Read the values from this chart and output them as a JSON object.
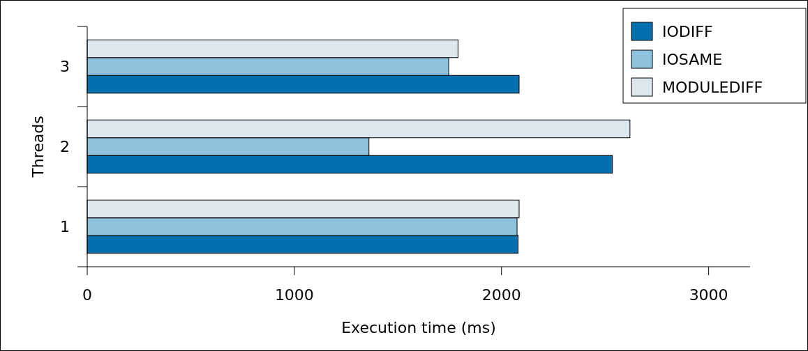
{
  "chart_data": {
    "type": "bar",
    "orientation": "horizontal",
    "xlabel": "Execution time (ms)",
    "ylabel": "Threads",
    "categories": [
      "3",
      "2",
      "1"
    ],
    "series": [
      {
        "name": "IODIFF",
        "color": "#0570b0",
        "values": [
          2085,
          2535,
          2080
        ]
      },
      {
        "name": "IOSAME",
        "color": "#8fc3dd",
        "values": [
          1745,
          1360,
          2075
        ]
      },
      {
        "name": "MODULEDIFF",
        "color": "#dde8ee",
        "values": [
          1790,
          2620,
          2085
        ]
      }
    ],
    "xlim": [
      0,
      3200
    ],
    "xticks": [
      0,
      1000,
      2000,
      3000
    ],
    "legend": "top right",
    "grid": false
  }
}
